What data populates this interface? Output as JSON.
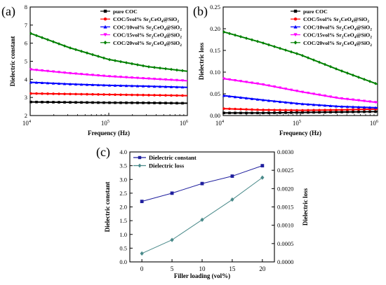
{
  "chart_data": [
    {
      "panel_label": "(a)",
      "type": "line",
      "xlabel": "Frequency (Hz)",
      "ylabel": "Dielectric constant",
      "xscale": "log",
      "xlim": [
        10000,
        1000000
      ],
      "ylim": [
        2,
        8
      ],
      "x_ticks": [
        {
          "value": 10000,
          "base": "10",
          "exp": "4"
        },
        {
          "value": 100000,
          "base": "10",
          "exp": "5"
        },
        {
          "value": 1000000,
          "base": "10",
          "exp": "6"
        }
      ],
      "y_ticks": [
        {
          "value": 2,
          "label": "2"
        },
        {
          "value": 3,
          "label": "3"
        },
        {
          "value": 4,
          "label": "4"
        },
        {
          "value": 5,
          "label": "5"
        },
        {
          "value": 6,
          "label": "6"
        },
        {
          "value": 7,
          "label": "7"
        },
        {
          "value": 8,
          "label": "8"
        }
      ],
      "legend_position": "top-right",
      "series": [
        {
          "name": "pure COC",
          "legend": {
            "pre": "pure COC",
            "parts": []
          },
          "color": "#000000",
          "marker": "square",
          "x": [
            10000,
            31623,
            100000,
            316228,
            1000000
          ],
          "y": [
            2.75,
            2.73,
            2.71,
            2.7,
            2.68
          ]
        },
        {
          "name": "COC/5vol% Sr2CeO4@SiO2",
          "legend": {
            "pre": "COC/5vol% Sr",
            "parts": [
              [
                "2",
                "sub"
              ],
              [
                "CeO",
                "n"
              ],
              [
                "4",
                "sub"
              ],
              [
                "@SiO",
                "n"
              ],
              [
                "2",
                "sub"
              ]
            ]
          },
          "color": "#ff0000",
          "marker": "circle",
          "x": [
            10000,
            31623,
            100000,
            316228,
            1000000
          ],
          "y": [
            3.22,
            3.19,
            3.16,
            3.13,
            3.1
          ]
        },
        {
          "name": "COC/10vol% Sr2CeO4@SiO2",
          "legend": {
            "pre": "COC/10vol% Sr",
            "parts": [
              [
                "2",
                "sub"
              ],
              [
                "CeO",
                "n"
              ],
              [
                "4",
                "sub"
              ],
              [
                "@SiO",
                "n"
              ],
              [
                "2",
                "sub"
              ]
            ]
          },
          "color": "#0000ff",
          "marker": "triangle",
          "x": [
            10000,
            31623,
            100000,
            316228,
            1000000
          ],
          "y": [
            3.84,
            3.74,
            3.67,
            3.62,
            3.56
          ]
        },
        {
          "name": "COC/15vol% Sr2CeO4@SiO2",
          "legend": {
            "pre": "COC/15vol% Sr",
            "parts": [
              [
                "2",
                "sub"
              ],
              [
                "CeO",
                "n"
              ],
              [
                "4",
                "sub"
              ],
              [
                "@SiO",
                "n"
              ],
              [
                "2",
                "sub"
              ]
            ]
          },
          "color": "#ff00ff",
          "marker": "triangle-down",
          "x": [
            10000,
            31623,
            100000,
            316228,
            1000000
          ],
          "y": [
            4.55,
            4.34,
            4.17,
            4.04,
            3.92
          ]
        },
        {
          "name": "COC/20vol% Sr2CeO4@SiO2",
          "legend": {
            "pre": "COC/20vol% Sr",
            "parts": [
              [
                "2",
                "sub"
              ],
              [
                "CeO",
                "n"
              ],
              [
                "4",
                "sub"
              ],
              [
                "@SiO",
                "n"
              ],
              [
                "2",
                "sub"
              ]
            ]
          },
          "color": "#008000",
          "marker": "diamond",
          "x": [
            10000,
            31623,
            100000,
            316228,
            1000000
          ],
          "y": [
            6.55,
            5.75,
            5.1,
            4.7,
            4.45
          ]
        }
      ]
    },
    {
      "panel_label": "(b)",
      "type": "line",
      "xlabel": "Frequency (Hz)",
      "ylabel": "Dielectric loss",
      "xscale": "log",
      "xlim": [
        10000,
        1000000
      ],
      "ylim": [
        0,
        0.25
      ],
      "x_ticks": [
        {
          "value": 10000,
          "base": "10",
          "exp": "4"
        },
        {
          "value": 100000,
          "base": "10",
          "exp": "5"
        },
        {
          "value": 1000000,
          "base": "10",
          "exp": "6"
        }
      ],
      "y_ticks": [
        {
          "value": 0,
          "label": "0.00"
        },
        {
          "value": 0.05,
          "label": "0.05"
        },
        {
          "value": 0.1,
          "label": "0.10"
        },
        {
          "value": 0.15,
          "label": "0.15"
        },
        {
          "value": 0.2,
          "label": "0.20"
        },
        {
          "value": 0.25,
          "label": "0.25"
        }
      ],
      "legend_position": "top-right",
      "series": [
        {
          "name": "pure COC",
          "legend": {
            "pre": "pure COC",
            "parts": []
          },
          "color": "#000000",
          "marker": "square",
          "x": [
            10000,
            31623,
            100000,
            316228,
            1000000
          ],
          "y": [
            0.006,
            0.006,
            0.007,
            0.008,
            0.009
          ]
        },
        {
          "name": "COC/5vol% Sr2CeO4@SiO2",
          "legend": {
            "pre": "COC/5vol% Sr",
            "parts": [
              [
                "2",
                "sub"
              ],
              [
                "CeO",
                "n"
              ],
              [
                "4",
                "sub"
              ],
              [
                "@SiO",
                "n"
              ],
              [
                "2",
                "sub"
              ]
            ]
          },
          "color": "#ff0000",
          "marker": "circle",
          "x": [
            10000,
            31623,
            100000,
            316228,
            1000000
          ],
          "y": [
            0.016,
            0.013,
            0.012,
            0.013,
            0.015
          ]
        },
        {
          "name": "COC/10vol% Sr2CeO4@SiO2",
          "legend": {
            "pre": "COC/10vol% Sr",
            "parts": [
              [
                "2",
                "sub"
              ],
              [
                "CeO",
                "n"
              ],
              [
                "4",
                "sub"
              ],
              [
                "@SiO",
                "n"
              ],
              [
                "2",
                "sub"
              ]
            ]
          },
          "color": "#0000ff",
          "marker": "triangle",
          "x": [
            10000,
            31623,
            100000,
            316228,
            1000000
          ],
          "y": [
            0.046,
            0.036,
            0.027,
            0.021,
            0.018
          ]
        },
        {
          "name": "COC/15vol% Sr2CeO4@SiO2",
          "legend": {
            "pre": "COC/15vol% Sr",
            "parts": [
              [
                "2",
                "sub"
              ],
              [
                "CeO",
                "n"
              ],
              [
                "4",
                "sub"
              ],
              [
                "@SiO",
                "n"
              ],
              [
                "2",
                "sub"
              ]
            ]
          },
          "color": "#ff00ff",
          "marker": "triangle-down",
          "x": [
            10000,
            31623,
            100000,
            316228,
            1000000
          ],
          "y": [
            0.085,
            0.072,
            0.055,
            0.04,
            0.03
          ]
        },
        {
          "name": "COC/20vol% Sr2CeO4@SiO2",
          "legend": {
            "pre": "COC/20vol% Sr",
            "parts": [
              [
                "2",
                "sub"
              ],
              [
                "CeO",
                "n"
              ],
              [
                "4",
                "sub"
              ],
              [
                "@SiO",
                "n"
              ],
              [
                "2",
                "sub"
              ]
            ]
          },
          "color": "#008000",
          "marker": "diamond",
          "x": [
            10000,
            31623,
            100000,
            316228,
            1000000
          ],
          "y": [
            0.193,
            0.168,
            0.14,
            0.105,
            0.072
          ]
        }
      ]
    },
    {
      "panel_label": "(c)",
      "type": "line",
      "xlabel": "Filler loading (vol%)",
      "ylabel": "Dielectric constant",
      "y2label": "Dielectric loss",
      "xlim": [
        -2,
        22
      ],
      "ylim": [
        0,
        4
      ],
      "y2lim": [
        0,
        0.003
      ],
      "x_ticks": [
        {
          "value": 0,
          "label": "0"
        },
        {
          "value": 5,
          "label": "5"
        },
        {
          "value": 10,
          "label": "10"
        },
        {
          "value": 15,
          "label": "15"
        },
        {
          "value": 20,
          "label": "20"
        }
      ],
      "y_ticks": [
        {
          "value": 0,
          "label": "0.0"
        },
        {
          "value": 0.5,
          "label": "0.5"
        },
        {
          "value": 1,
          "label": "1.0"
        },
        {
          "value": 1.5,
          "label": "1.5"
        },
        {
          "value": 2,
          "label": "2.0"
        },
        {
          "value": 2.5,
          "label": "2.5"
        },
        {
          "value": 3,
          "label": "3.0"
        },
        {
          "value": 3.5,
          "label": "3.5"
        },
        {
          "value": 4,
          "label": "4.0"
        }
      ],
      "y2_ticks": [
        {
          "value": 0,
          "label": "0.0000"
        },
        {
          "value": 0.0005,
          "label": "0.0005"
        },
        {
          "value": 0.001,
          "label": "0.0010"
        },
        {
          "value": 0.0015,
          "label": "0.0015"
        },
        {
          "value": 0.002,
          "label": "0.0020"
        },
        {
          "value": 0.0025,
          "label": "0.0025"
        },
        {
          "value": 0.003,
          "label": "0.0030"
        }
      ],
      "legend_position": "top-left",
      "series": [
        {
          "name": "Dielectric constant",
          "legend": {
            "pre": "Dielectric constant",
            "parts": []
          },
          "color": "#1f1f9e",
          "marker": "square",
          "axis": "left",
          "x": [
            0,
            5,
            10,
            15,
            20
          ],
          "y": [
            2.2,
            2.5,
            2.85,
            3.12,
            3.5
          ]
        },
        {
          "name": "Dielectric loss",
          "legend": {
            "pre": "Dielectric loss",
            "parts": []
          },
          "color": "#4a8a8a",
          "marker": "diamond",
          "axis": "right",
          "x": [
            0,
            5,
            10,
            15,
            20
          ],
          "y": [
            0.00023,
            0.0006,
            0.00115,
            0.0017,
            0.0023
          ]
        }
      ]
    }
  ]
}
